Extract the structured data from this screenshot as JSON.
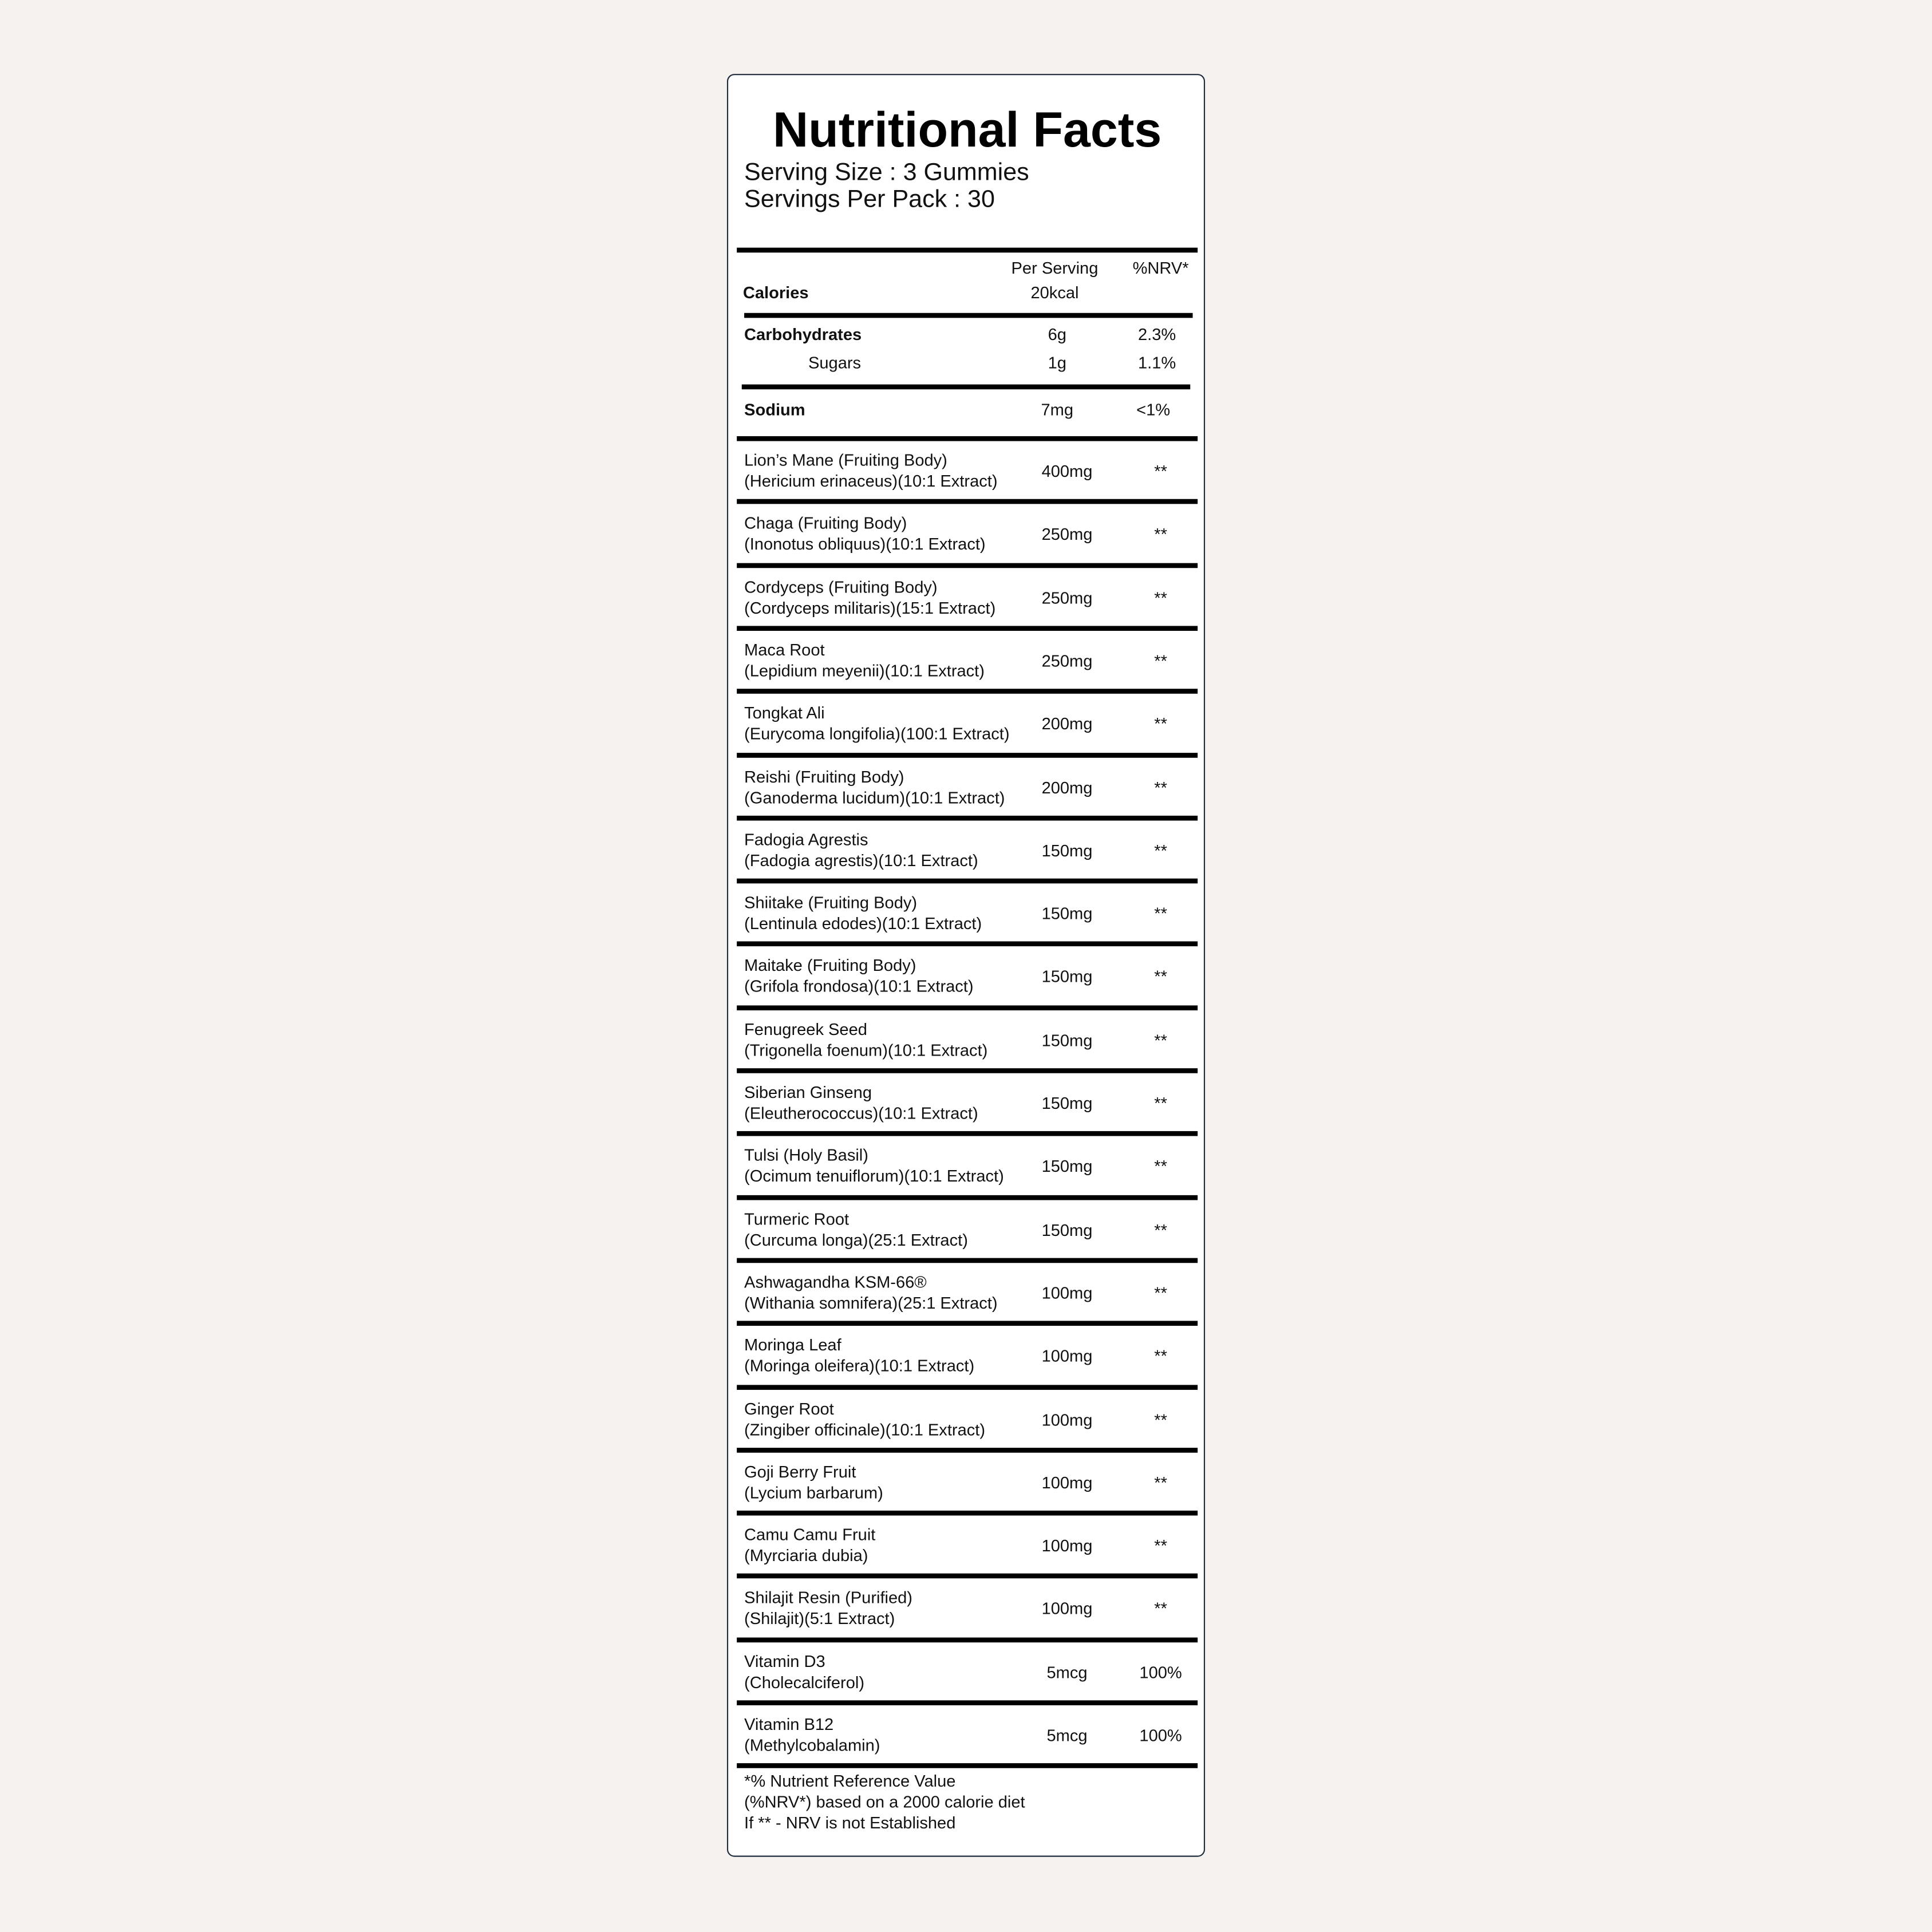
{
  "header": {
    "title": "Nutritional Facts",
    "serving_size": "Serving Size : 3 Gummies",
    "servings_per_pack": "Servings Per Pack : 30"
  },
  "table": {
    "columns": [
      "Per Serving",
      "%NRV*"
    ],
    "calories": {
      "name": "Calories",
      "amount": "20kcal"
    },
    "carbohydrates": {
      "name": "Carbohydrates",
      "amount": "6g",
      "nrv": "2.3%"
    },
    "sugars": {
      "name": "Sugars",
      "amount": "1g",
      "nrv": "1.1%"
    },
    "sodium": {
      "name": "Sodium",
      "amount": "7mg",
      "nrv": "<1%"
    },
    "ingredients": [
      {
        "name": "Lion’s Mane (Fruiting Body)",
        "detail": "(Hericium erinaceus)(10:1 Extract)",
        "amount": "400mg",
        "nrv": "**"
      },
      {
        "name": "Chaga (Fruiting Body)",
        "detail": "(Inonotus obliquus)(10:1 Extract)",
        "amount": "250mg",
        "nrv": "**"
      },
      {
        "name": "Cordyceps (Fruiting Body)",
        "detail": "(Cordyceps militaris)(15:1 Extract)",
        "amount": "250mg",
        "nrv": "**"
      },
      {
        "name": "Maca Root",
        "detail": "(Lepidium meyenii)(10:1 Extract)",
        "amount": "250mg",
        "nrv": "**"
      },
      {
        "name": "Tongkat Ali",
        "detail": "(Eurycoma longifolia)(100:1 Extract)",
        "amount": "200mg",
        "nrv": "**"
      },
      {
        "name": "Reishi (Fruiting Body)",
        "detail": "(Ganoderma lucidum)(10:1 Extract)",
        "amount": "200mg",
        "nrv": "**"
      },
      {
        "name": "Fadogia Agrestis",
        "detail": "(Fadogia agrestis)(10:1 Extract)",
        "amount": "150mg",
        "nrv": "**"
      },
      {
        "name": "Shiitake (Fruiting Body)",
        "detail": "(Lentinula edodes)(10:1 Extract)",
        "amount": "150mg",
        "nrv": "**"
      },
      {
        "name": "Maitake (Fruiting Body)",
        "detail": "(Grifola frondosa)(10:1 Extract)",
        "amount": "150mg",
        "nrv": "**"
      },
      {
        "name": "Fenugreek Seed",
        "detail": "(Trigonella foenum)(10:1 Extract)",
        "amount": "150mg",
        "nrv": "**"
      },
      {
        "name": "Siberian Ginseng",
        "detail": "(Eleutherococcus)(10:1 Extract)",
        "amount": "150mg",
        "nrv": "**"
      },
      {
        "name": "Tulsi (Holy Basil)",
        "detail": "(Ocimum tenuiflorum)(10:1 Extract)",
        "amount": "150mg",
        "nrv": "**"
      },
      {
        "name": "Turmeric Root",
        "detail": "(Curcuma longa)(25:1 Extract)",
        "amount": "150mg",
        "nrv": "**"
      },
      {
        "name": "Ashwagandha KSM-66®",
        "detail": "(Withania somnifera)(25:1 Extract)",
        "amount": "100mg",
        "nrv": "**"
      },
      {
        "name": "Moringa Leaf",
        "detail": "(Moringa oleifera)(10:1 Extract)",
        "amount": "100mg",
        "nrv": "**"
      },
      {
        "name": "Ginger Root",
        "detail": "(Zingiber officinale)(10:1 Extract)",
        "amount": "100mg",
        "nrv": "**"
      },
      {
        "name": "Goji Berry Fruit",
        "detail": "(Lycium barbarum)",
        "amount": "100mg",
        "nrv": "**"
      },
      {
        "name": "Camu Camu Fruit",
        "detail": "(Myrciaria dubia)",
        "amount": "100mg",
        "nrv": "**"
      },
      {
        "name": "Shilajit Resin (Purified)",
        "detail": "(Shilajit)(5:1 Extract)",
        "amount": "100mg",
        "nrv": "**"
      },
      {
        "name": "Vitamin D3",
        "detail": "(Cholecalciferol)",
        "amount": "5mcg",
        "nrv": "100%"
      },
      {
        "name": "Vitamin B12",
        "detail": "(Methylcobalamin)",
        "amount": "5mcg",
        "nrv": "100%"
      }
    ]
  },
  "footnote": [
    "*% Nutrient Reference Value",
    "(%NRV*) based on a 2000 calorie diet",
    "If ** - NRV is not Established"
  ]
}
